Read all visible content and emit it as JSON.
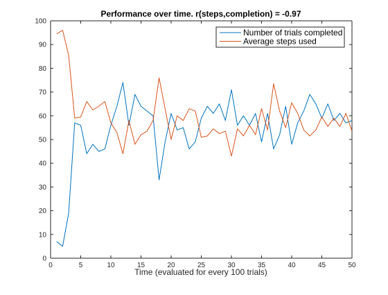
{
  "chart_data": {
    "type": "line",
    "title": "Performance over time. r(steps,completion) = -0.97",
    "xlabel": "Time (evaluated for every 100 trials)",
    "ylabel": "",
    "xlim": [
      0,
      50
    ],
    "ylim": [
      0,
      100
    ],
    "xticks": [
      0,
      5,
      10,
      15,
      20,
      25,
      30,
      35,
      40,
      45,
      50
    ],
    "yticks": [
      0,
      10,
      20,
      30,
      40,
      50,
      60,
      70,
      80,
      90,
      100
    ],
    "grid": false,
    "legend_position": "top-right",
    "x": [
      1,
      2,
      3,
      4,
      5,
      6,
      7,
      8,
      9,
      10,
      11,
      12,
      13,
      14,
      15,
      16,
      17,
      18,
      19,
      20,
      21,
      22,
      23,
      24,
      25,
      26,
      27,
      28,
      29,
      30,
      31,
      32,
      33,
      34,
      35,
      36,
      37,
      38,
      39,
      40,
      41,
      42,
      43,
      44,
      45,
      46,
      47,
      48,
      49,
      50
    ],
    "series": [
      {
        "name": "Number of trials completed",
        "color": "#0072BD",
        "values": [
          7,
          5,
          19,
          57,
          56,
          44,
          48,
          45,
          46,
          56,
          64,
          74,
          56,
          69,
          64,
          62,
          60,
          33,
          49,
          61,
          54,
          55,
          46,
          49,
          59,
          64,
          61,
          65,
          58,
          71,
          56,
          60,
          56,
          61,
          49,
          61,
          46,
          52,
          64,
          48,
          57,
          62,
          69,
          65,
          59,
          65,
          58,
          61,
          57,
          58
        ]
      },
      {
        "name": "Average steps used",
        "color": "#D95319",
        "values": [
          94.5,
          96,
          85.5,
          59,
          59.5,
          66,
          62.5,
          64,
          66,
          57,
          53,
          44,
          58,
          48,
          52,
          53.5,
          58,
          76,
          63,
          50,
          60,
          58,
          63,
          62,
          51,
          51.5,
          54.5,
          52.5,
          53.5,
          43,
          54.5,
          51.5,
          56,
          52,
          63,
          54,
          73.5,
          62,
          55,
          65.5,
          61,
          54,
          51.5,
          54,
          59.5,
          55.5,
          59,
          55.5,
          61,
          53.5
        ]
      }
    ]
  }
}
